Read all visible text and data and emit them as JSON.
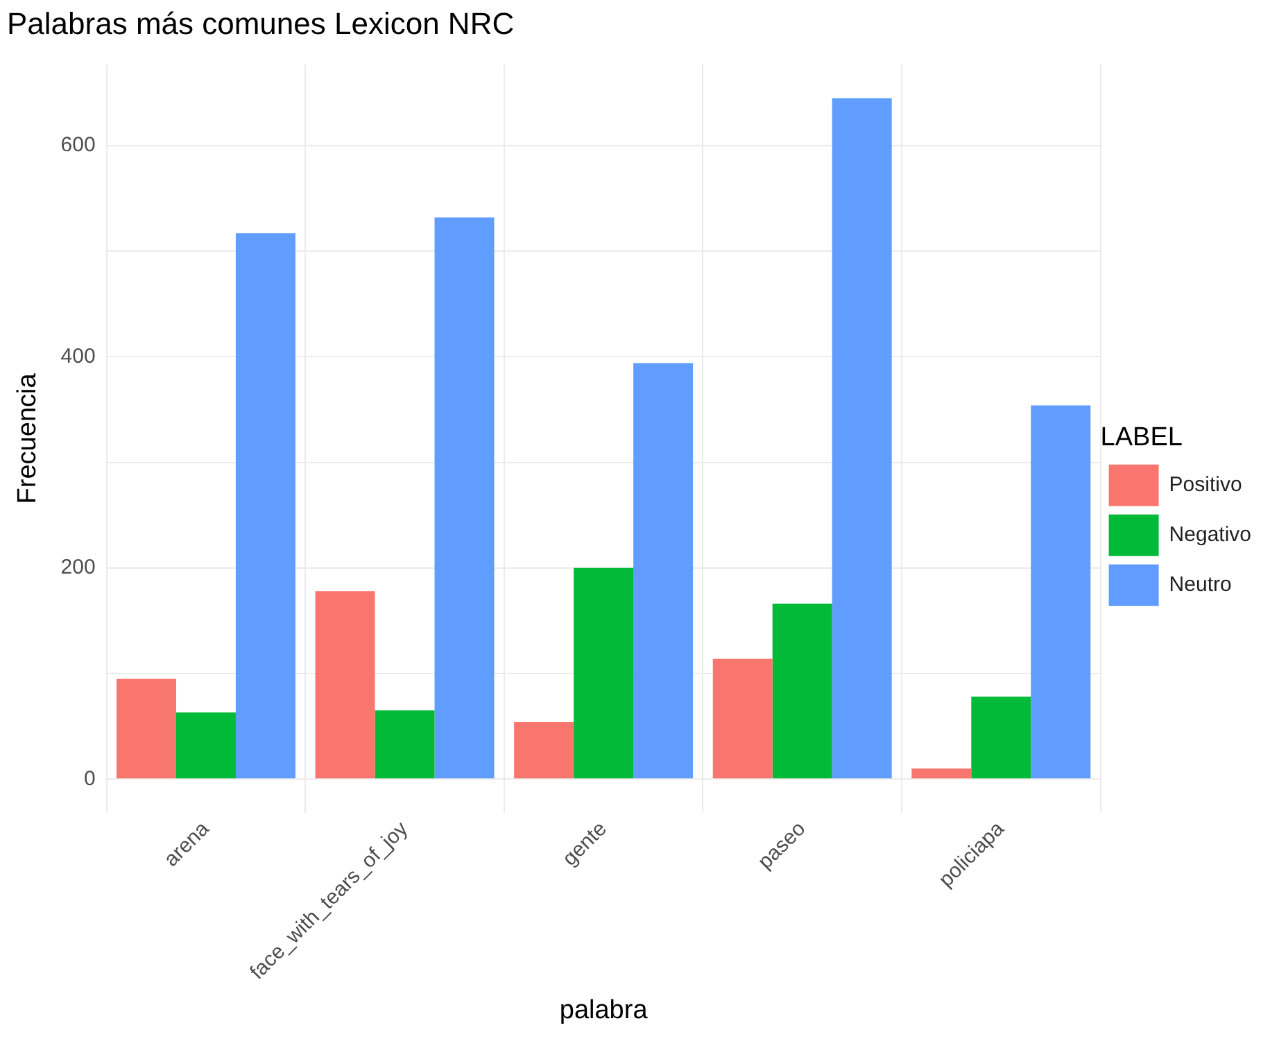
{
  "chart_data": {
    "type": "bar",
    "title": "Palabras más comunes Lexicon NRC",
    "xlabel": "palabra",
    "ylabel": "Frecuencia",
    "legend_title": "LABEL",
    "categories": [
      "arena",
      "face_with_tears_of_joy",
      "gente",
      "paseo",
      "policiapa"
    ],
    "series": [
      {
        "name": "Positivo",
        "color": "#f8766d",
        "values": [
          95,
          178,
          54,
          114,
          10
        ]
      },
      {
        "name": "Negativo",
        "color": "#00ba38",
        "values": [
          63,
          65,
          200,
          166,
          78
        ]
      },
      {
        "name": "Neutro",
        "color": "#619cff",
        "values": [
          517,
          532,
          394,
          645,
          354
        ]
      }
    ],
    "ylim": [
      -32,
      677
    ],
    "yticks": [
      0,
      {
        "value": 100,
        "label": null
      },
      200,
      {
        "value": 300,
        "label": null
      },
      400,
      {
        "value": 500,
        "label": null
      },
      600
    ],
    "grid": true,
    "legend": "right"
  }
}
